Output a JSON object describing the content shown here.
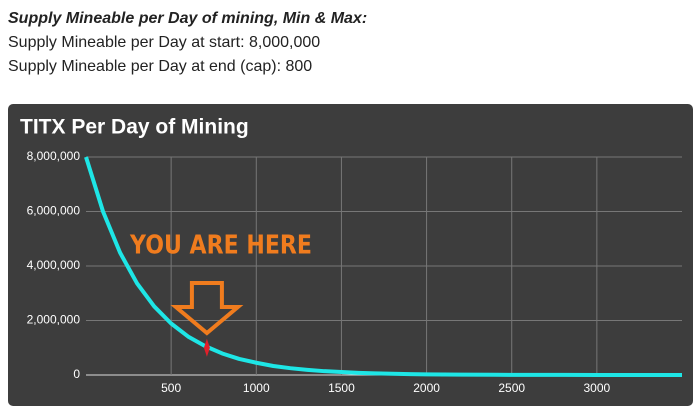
{
  "header": {
    "title": "Supply Mineable per Day of mining, Min & Max:",
    "lines": [
      "Supply Mineable per Day at start: 8,000,000",
      "Supply Mineable per Day at end (cap): 800"
    ]
  },
  "chart_data": {
    "type": "line",
    "title": "TITX Per Day of Mining",
    "color": "#1ee6e6",
    "x": [
      0,
      100,
      200,
      300,
      400,
      500,
      600,
      700,
      800,
      900,
      1000,
      1100,
      1200,
      1300,
      1400,
      1500,
      1600,
      1700,
      1800,
      1900,
      2000,
      2200,
      2400,
      2600,
      2800,
      3000,
      3200,
      3400,
      3500
    ],
    "values": [
      8000000,
      6000000,
      4490000,
      3360000,
      2520000,
      1890000,
      1410000,
      1060000,
      790000,
      590000,
      450000,
      330000,
      250000,
      190000,
      140000,
      110000,
      79000,
      60000,
      44000,
      33000,
      25000,
      14000,
      7800,
      4400,
      2500,
      1400,
      800,
      800,
      800
    ],
    "xlim": [
      0,
      3500
    ],
    "xticks": [
      500,
      1000,
      1500,
      2000,
      2500,
      3000
    ],
    "ylim": [
      0,
      8000000
    ],
    "yticks": [
      0,
      {
        "value": 2000000,
        "label": "2,000,000"
      },
      {
        "value": 4000000,
        "label": "4,000,000"
      },
      {
        "value": 6000000,
        "label": "6,000,000"
      },
      {
        "value": 8000000,
        "label": "8,000,000"
      }
    ],
    "grid": true,
    "annotation": {
      "label": "YOU ARE HERE",
      "x": 710,
      "y": 1000000,
      "color": "#f07c1e",
      "marker_color": "#e0202a"
    }
  }
}
